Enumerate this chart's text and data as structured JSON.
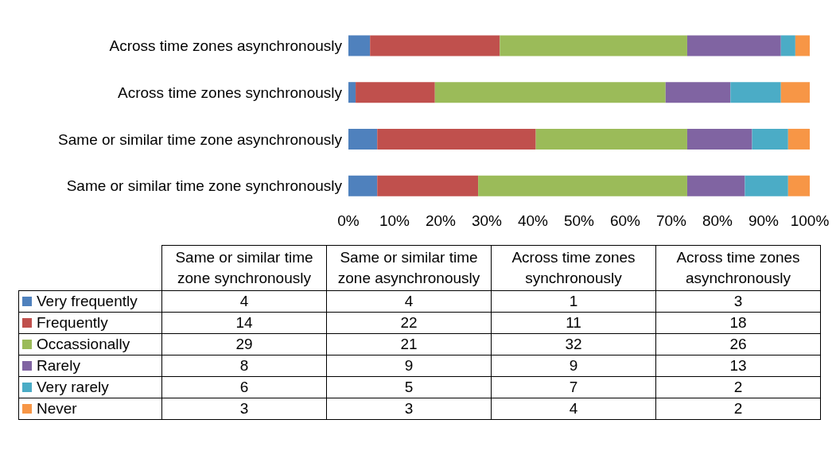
{
  "chart_data": [
    {
      "type": "bar",
      "orientation": "horizontal",
      "stacked": true,
      "categories": [
        "Across time zones asynchronously",
        "Across time zones synchronously",
        "Same or similar time zone asynchronously",
        "Same or similar time zone synchronously"
      ],
      "series": [
        {
          "color": "#4f81bd",
          "values": [
            4.6875,
            1.5625,
            6.25,
            6.25
          ]
        },
        {
          "color": "#c0504d",
          "values": [
            28.125,
            17.1875,
            34.375,
            21.875
          ]
        },
        {
          "color": "#9bbb59",
          "values": [
            40.625,
            50,
            32.8125,
            45.3125
          ]
        },
        {
          "color": "#8064a2",
          "values": [
            20.3125,
            14.0625,
            14.0625,
            12.5
          ]
        },
        {
          "color": "#4bacc6",
          "values": [
            3.125,
            10.9375,
            7.8125,
            9.375
          ]
        },
        {
          "color": "#f79646",
          "values": [
            3.125,
            6.25,
            4.6875,
            4.6875
          ]
        }
      ],
      "xlim": [
        0,
        100
      ],
      "xticks": [
        {
          "value": 0,
          "label": "0%"
        },
        {
          "value": 10,
          "label": "10%"
        },
        {
          "value": 20,
          "label": "20%"
        },
        {
          "value": 30,
          "label": "30%"
        },
        {
          "value": 40,
          "label": "40%"
        },
        {
          "value": 50,
          "label": "50%"
        },
        {
          "value": 60,
          "label": "60%"
        },
        {
          "value": 70,
          "label": "70%"
        },
        {
          "value": 80,
          "label": "80%"
        },
        {
          "value": 90,
          "label": "90%"
        },
        {
          "value": 100,
          "label": "100%"
        }
      ]
    },
    {
      "type": "heatmap",
      "categories": [
        "Same or similar time zone synchronously",
        "Same or similar time zone asynchronously",
        "Across time zones synchronously",
        "Across time zones asynchronously"
      ],
      "y_categories": [
        "Very frequently",
        "Frequently",
        "Occassionally",
        "Rarely",
        "Very rarely",
        "Never"
      ],
      "cells": [
        [
          4,
          4,
          1,
          3
        ],
        [
          14,
          22,
          11,
          18
        ],
        [
          29,
          21,
          32,
          26
        ],
        [
          8,
          9,
          9,
          13
        ],
        [
          6,
          5,
          7,
          2
        ],
        [
          3,
          3,
          4,
          2
        ]
      ],
      "data_labels": true
    }
  ]
}
